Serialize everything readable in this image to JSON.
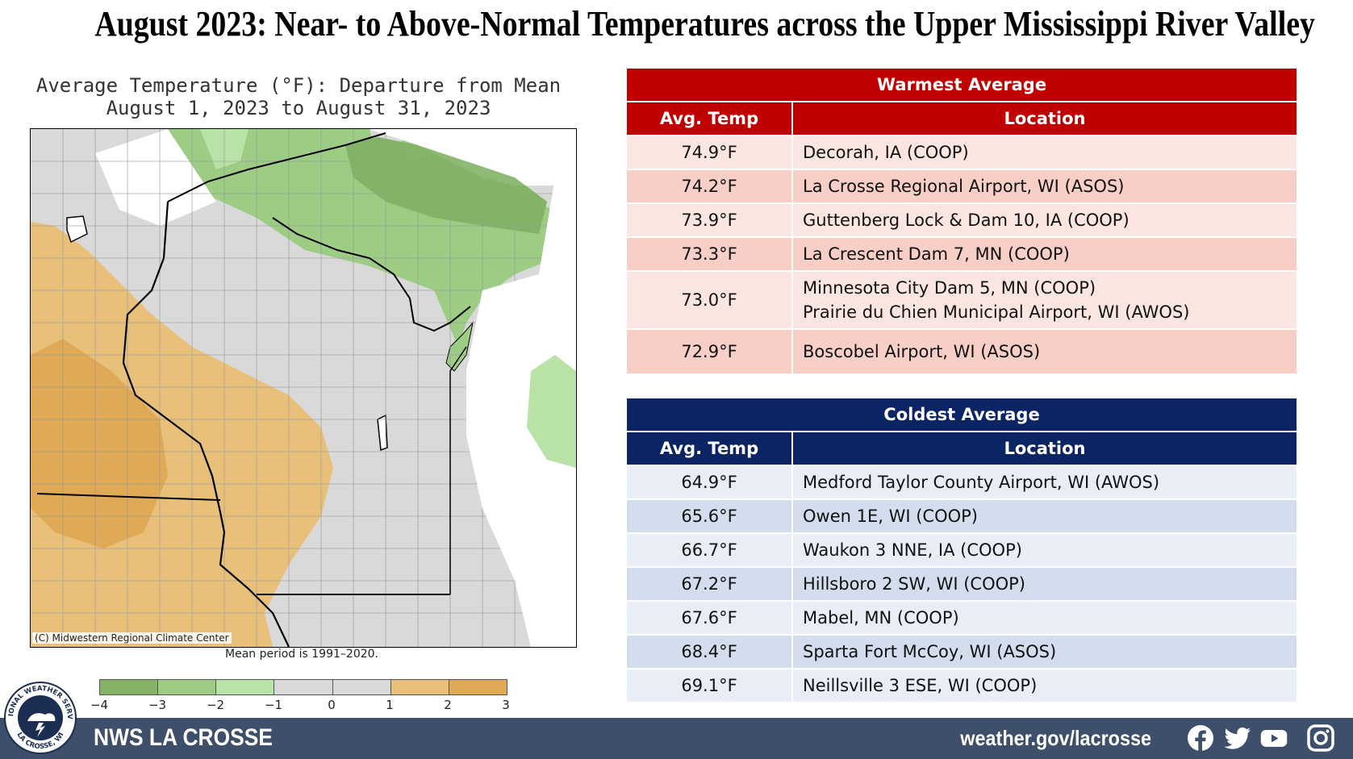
{
  "title": "August 2023:  Near- to Above-Normal Temperatures across the Upper Mississippi River Valley",
  "map": {
    "title_line1": "Average Temperature (°F): Departure from Mean",
    "title_line2": "August 1, 2023 to August 31, 2023",
    "credit": "(C) Midwestern Regional Climate Center",
    "mean_period": "Mean period is 1991–2020.",
    "legend": {
      "ticks": [
        "−4",
        "−3",
        "−2",
        "−1",
        "0",
        "1",
        "2",
        "3"
      ],
      "colors": [
        "#82b366",
        "#9dcc85",
        "#b9e3a6",
        "#d9d9d9",
        "#d9d9d9",
        "#e8c07a",
        "#e0a955"
      ]
    }
  },
  "warmest": {
    "caption": "Warmest  Average",
    "col_temp": "Avg. Temp",
    "col_location": "Location",
    "rows": [
      {
        "temp": "74.9°F",
        "location": "Decorah, IA (COOP)"
      },
      {
        "temp": "74.2°F",
        "location": "La Crosse Regional Airport, WI (ASOS)"
      },
      {
        "temp": "73.9°F",
        "location": "Guttenberg Lock & Dam 10, IA (COOP)"
      },
      {
        "temp": "73.3°F",
        "location": "La Crescent Dam 7, MN (COOP)"
      },
      {
        "temp": "73.0°F",
        "location": "Minnesota City Dam 5, MN (COOP)",
        "location2": "Prairie du Chien Municipal Airport, WI (AWOS)"
      },
      {
        "temp": "72.9°F",
        "location": "Boscobel Airport, WI (ASOS)"
      }
    ]
  },
  "coldest": {
    "caption": "Coldest Average",
    "col_temp": "Avg. Temp",
    "col_location": "Location",
    "rows": [
      {
        "temp": "64.9°F",
        "location": "Medford Taylor County Airport, WI (AWOS)"
      },
      {
        "temp": "65.6°F",
        "location": "Owen 1E, WI (COOP)"
      },
      {
        "temp": "66.7°F",
        "location": "Waukon 3 NNE, IA (COOP)"
      },
      {
        "temp": "67.2°F",
        "location": "Hillsboro 2 SW, WI (COOP)"
      },
      {
        "temp": "67.6°F",
        "location": "Mabel, MN (COOP)"
      },
      {
        "temp": "68.4°F",
        "location": "Sparta Fort McCoy, WI (ASOS)"
      },
      {
        "temp": "69.1°F",
        "location": "Neillsville 3 ESE, WI (COOP)"
      }
    ]
  },
  "footer": {
    "org": "NWS LA CROSSE",
    "url": "weather.gov/lacrosse",
    "logo_text_top": "NATIONAL WEATHER SERVICE",
    "logo_text_bottom": "LA CROSSE, WI",
    "social_icons": [
      "facebook-icon",
      "twitter-icon",
      "youtube-icon",
      "instagram-icon"
    ]
  }
}
